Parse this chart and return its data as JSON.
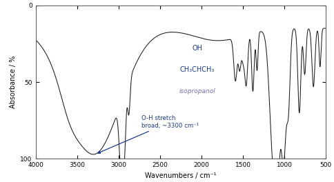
{
  "title": "",
  "xlabel": "Wavenumbers / cm⁻¹",
  "ylabel": "Absorbance / %",
  "xlim": [
    4000,
    500
  ],
  "ylim": [
    100,
    0
  ],
  "yticks": [
    0,
    50,
    100
  ],
  "xticks": [
    4000,
    3500,
    3000,
    2500,
    2000,
    1500,
    1000,
    500
  ],
  "background_color": "#ffffff",
  "line_color": "#1a1a1a",
  "annotation_color": "#1a3a8a",
  "isopropanol_color": "#7070b0",
  "annotation_text1": "O-H stretch",
  "annotation_text2": "broad, ~3300 cm⁻¹",
  "molecule_line1": "OH",
  "molecule_line2": "CH₃CHCH₃",
  "molecule_line3": "isopropanol",
  "mol_x": 2050,
  "mol_y1": 28,
  "mol_y2": 42,
  "mol_y3": 56
}
